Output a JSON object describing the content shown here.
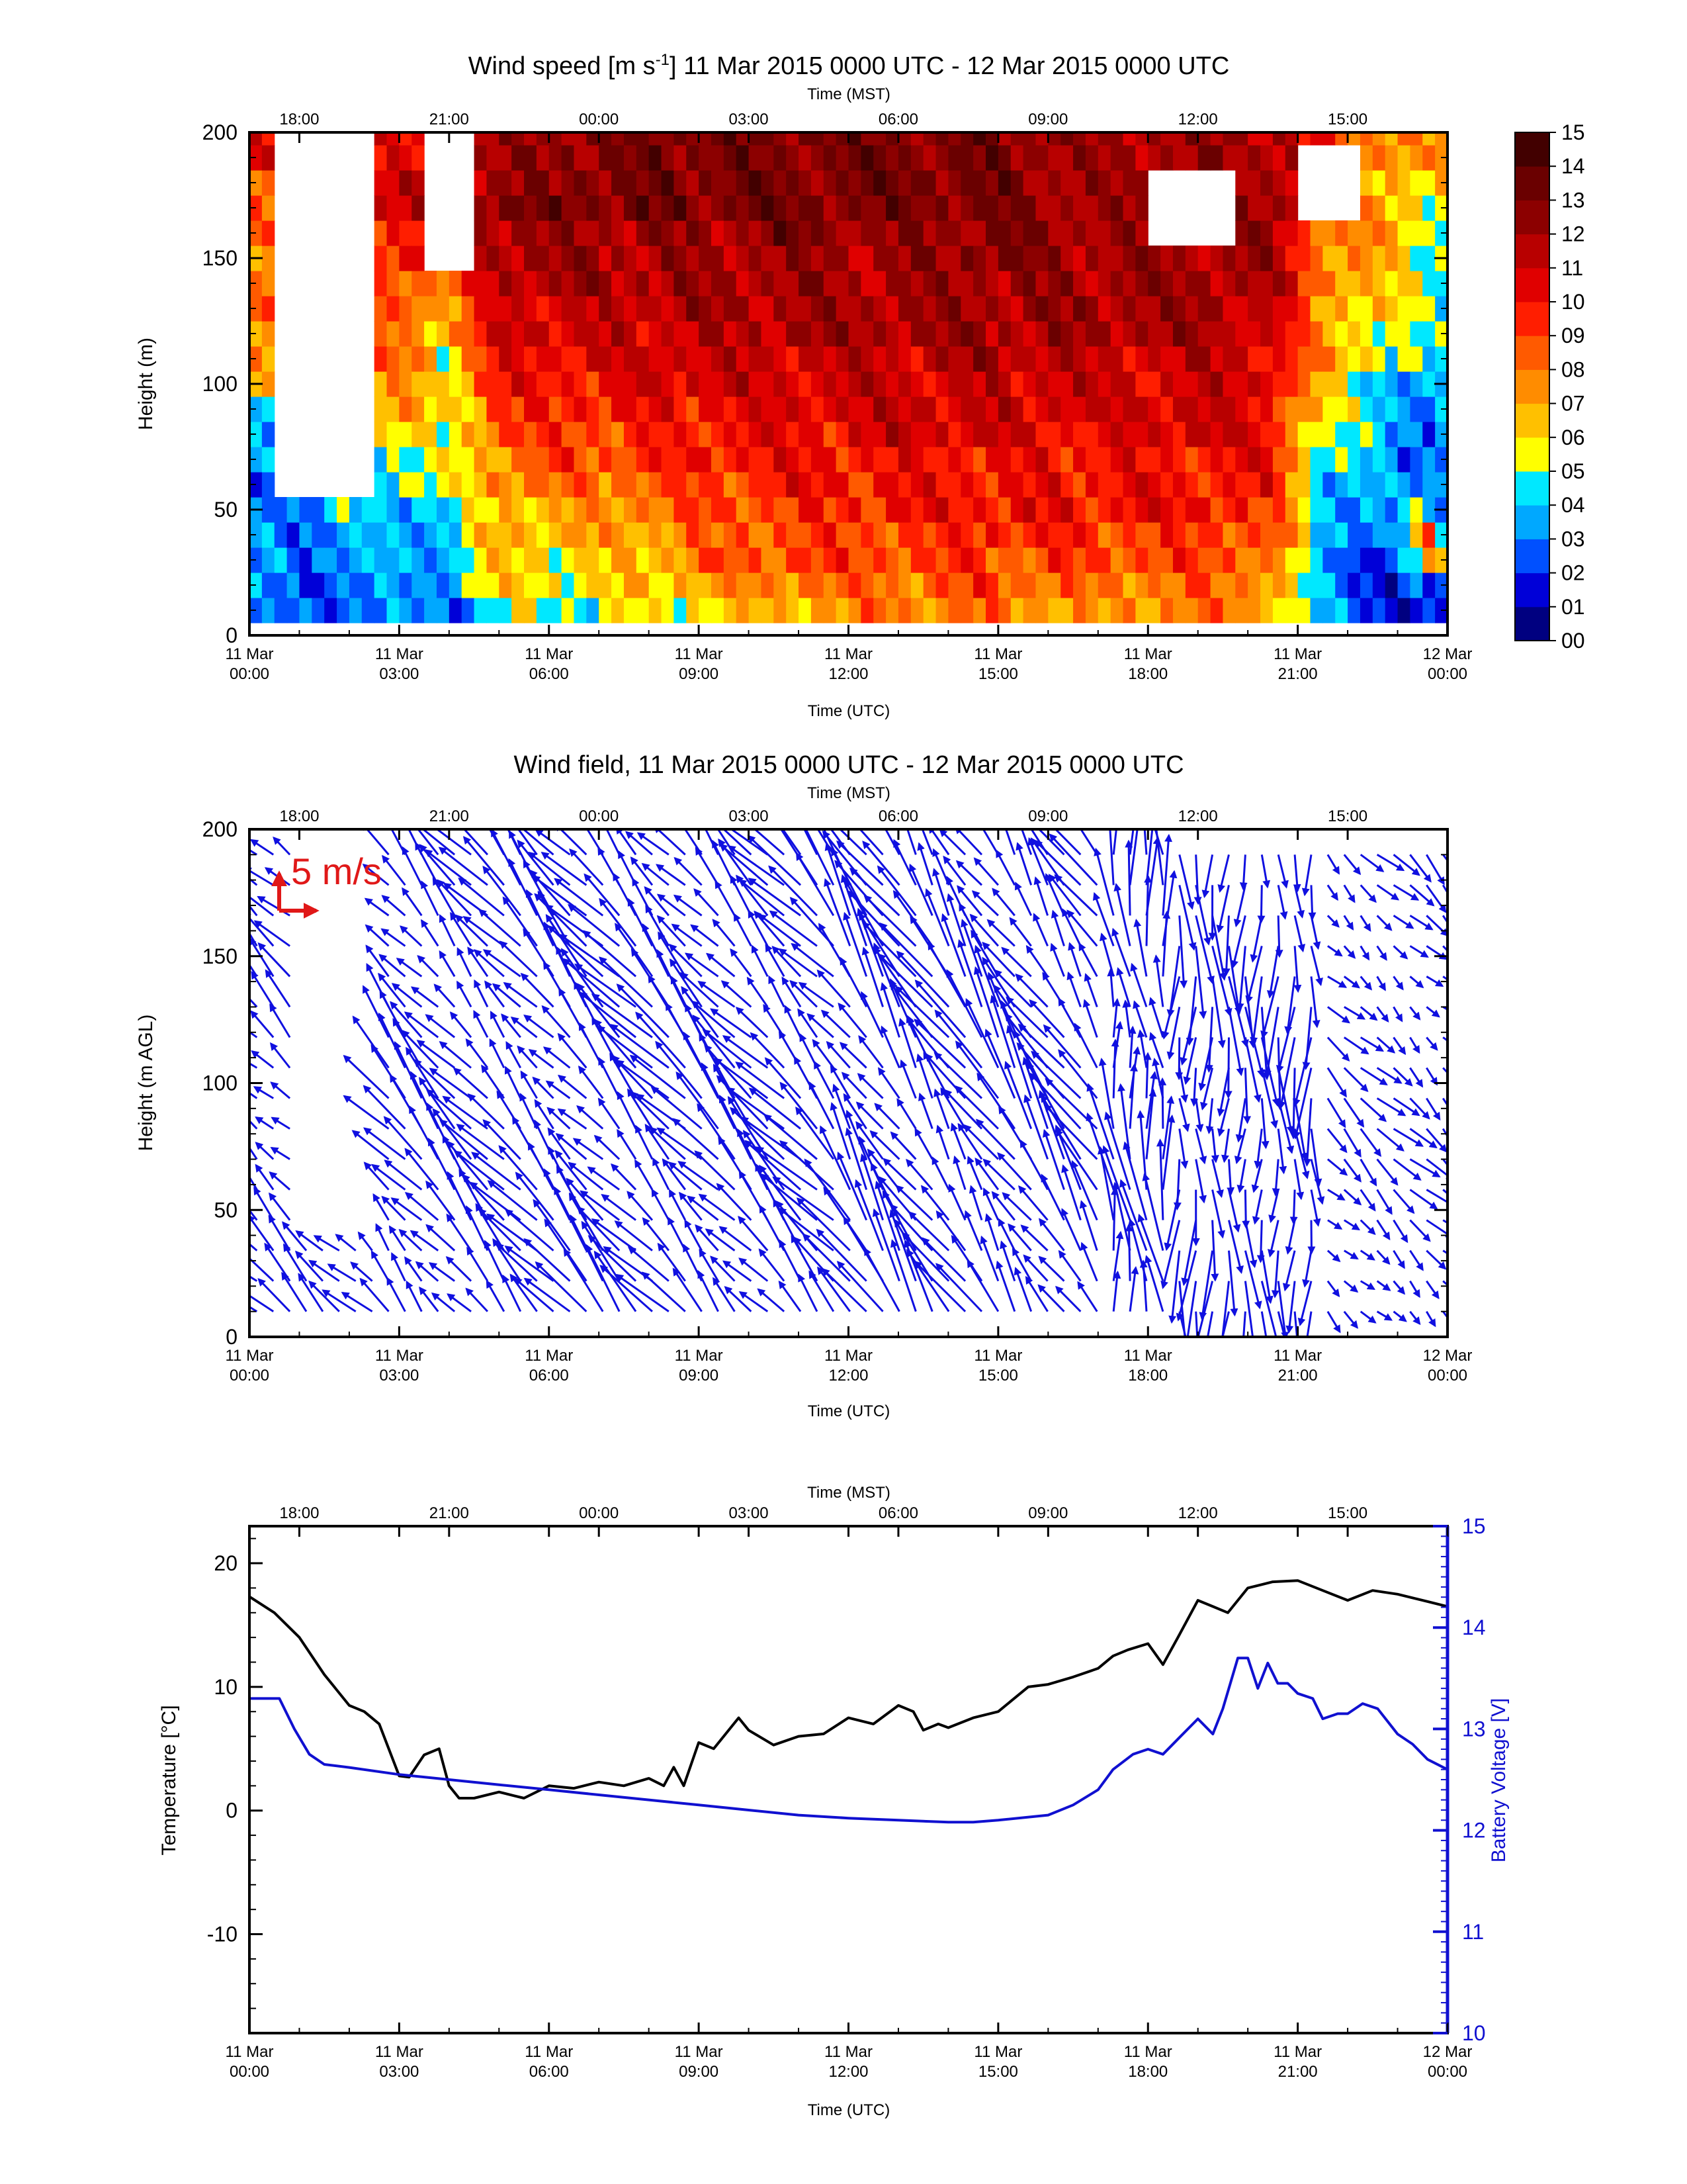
{
  "colors": {
    "wind_arrow": "#1010e0",
    "legend_arrow": "#e01818",
    "battery": "#1010d0",
    "temperature": "#000000"
  },
  "utc_ticks": [
    {
      "d": "11 Mar",
      "t": "00:00"
    },
    {
      "d": "11 Mar",
      "t": "03:00"
    },
    {
      "d": "11 Mar",
      "t": "06:00"
    },
    {
      "d": "11 Mar",
      "t": "09:00"
    },
    {
      "d": "11 Mar",
      "t": "12:00"
    },
    {
      "d": "11 Mar",
      "t": "15:00"
    },
    {
      "d": "11 Mar",
      "t": "18:00"
    },
    {
      "d": "11 Mar",
      "t": "21:00"
    },
    {
      "d": "12 Mar",
      "t": "00:00"
    }
  ],
  "mst_ticks": [
    "18:00",
    "21:00",
    "00:00",
    "03:00",
    "06:00",
    "09:00",
    "12:00",
    "15:00"
  ],
  "common": {
    "xlabel_bottom": "Time (UTC)",
    "xlabel_top": "Time (MST)"
  },
  "chart_data": [
    {
      "type": "heatmap",
      "title_pre": "Wind speed [m s",
      "title_sup": "-1",
      "title_post": "] 11 Mar 2015 0000 UTC - 12 Mar 2015 0000 UTC",
      "ylabel": "Height (m)",
      "xlim_hours_utc": [
        0,
        24
      ],
      "ylim": [
        0,
        200
      ],
      "yticks": [
        0,
        50,
        100,
        150,
        200
      ],
      "colorbar": {
        "labels": [
          "00",
          "01",
          "02",
          "03",
          "04",
          "05",
          "06",
          "07",
          "08",
          "09",
          "10",
          "11",
          "12",
          "13",
          "14",
          "15"
        ],
        "colors": [
          "#000080",
          "#0000d8",
          "#0050ff",
          "#00a8ff",
          "#00e8ff",
          "#ffff00",
          "#ffc000",
          "#ff8c00",
          "#ff5a00",
          "#ff1e00",
          "#e00000",
          "#b80000",
          "#8c0000",
          "#6a0000",
          "#420000"
        ]
      },
      "heights": [
        10,
        20,
        30,
        40,
        50,
        60,
        70,
        80,
        90,
        100,
        110,
        120,
        130,
        140,
        150,
        160,
        170,
        180,
        190,
        200
      ],
      "timeline": [
        {
          "t": 0,
          "s": [
            3,
            3,
            3,
            3,
            3,
            3,
            4,
            4,
            5,
            6,
            7,
            7,
            8,
            8,
            8,
            9,
            9,
            9,
            10,
            10
          ]
        },
        {
          "t": 1,
          "s": [
            2,
            2,
            3,
            3,
            3,
            null,
            null,
            null,
            null,
            null,
            null,
            null,
            null,
            null,
            null,
            null,
            null,
            null,
            null,
            null
          ]
        },
        {
          "t": 2,
          "s": [
            3,
            3,
            3,
            3,
            4,
            null,
            null,
            null,
            null,
            null,
            null,
            null,
            null,
            null,
            null,
            null,
            null,
            null,
            null,
            null
          ]
        },
        {
          "t": 3.2,
          "s": [
            3,
            3,
            4,
            4,
            4,
            5,
            5,
            6,
            7,
            7,
            8,
            8,
            9,
            9,
            10,
            10,
            11,
            11,
            10,
            10
          ]
        },
        {
          "t": 4,
          "s": [
            3,
            4,
            4,
            4,
            4,
            5,
            5,
            5,
            6,
            6,
            6,
            7,
            7,
            8,
            null,
            null,
            null,
            null,
            null,
            null
          ]
        },
        {
          "t": 5,
          "s": [
            5,
            6,
            6,
            7,
            7,
            8,
            8,
            9,
            9,
            10,
            10,
            11,
            11,
            12,
            12,
            12,
            13,
            12,
            12,
            12
          ]
        },
        {
          "t": 7,
          "s": [
            5,
            6,
            6,
            7,
            7,
            8,
            9,
            9,
            10,
            10,
            11,
            11,
            11,
            12,
            12,
            12,
            13,
            13,
            13,
            13
          ]
        },
        {
          "t": 9,
          "s": [
            6,
            7,
            8,
            8,
            9,
            9,
            10,
            10,
            10,
            11,
            11,
            11,
            12,
            12,
            12,
            12,
            13,
            13,
            13,
            13
          ]
        },
        {
          "t": 11,
          "s": [
            7,
            8,
            9,
            9,
            9,
            10,
            10,
            10,
            11,
            11,
            11,
            12,
            12,
            12,
            12,
            13,
            13,
            13,
            13,
            13
          ]
        },
        {
          "t": 13,
          "s": [
            8,
            8,
            9,
            9,
            10,
            10,
            10,
            11,
            11,
            11,
            11,
            12,
            12,
            12,
            12,
            12,
            13,
            13,
            13,
            13
          ]
        },
        {
          "t": 15,
          "s": [
            8,
            9,
            9,
            10,
            10,
            10,
            10,
            11,
            11,
            11,
            12,
            12,
            12,
            12,
            13,
            13,
            13,
            13,
            13,
            13
          ]
        },
        {
          "t": 17,
          "s": [
            7,
            8,
            9,
            9,
            10,
            10,
            10,
            10,
            11,
            11,
            11,
            12,
            12,
            12,
            12,
            12,
            12,
            12,
            12,
            12
          ]
        },
        {
          "t": 19,
          "s": [
            8,
            8,
            9,
            9,
            10,
            10,
            10,
            11,
            11,
            11,
            11,
            12,
            12,
            12,
            12,
            null,
            null,
            null,
            12,
            12
          ]
        },
        {
          "t": 20.5,
          "s": [
            7,
            8,
            8,
            9,
            9,
            10,
            10,
            10,
            10,
            11,
            11,
            11,
            11,
            12,
            12,
            12,
            12,
            12,
            12,
            12
          ]
        },
        {
          "t": 21.5,
          "s": [
            3,
            3,
            3,
            4,
            4,
            4,
            5,
            5,
            6,
            6,
            7,
            7,
            7,
            8,
            8,
            8,
            null,
            null,
            null,
            9
          ]
        },
        {
          "t": 23,
          "s": [
            2,
            2,
            2,
            3,
            3,
            3,
            3,
            4,
            4,
            4,
            5,
            5,
            6,
            6,
            6,
            7,
            7,
            7,
            8,
            8
          ]
        },
        {
          "t": 23.7,
          "s": [
            1,
            2,
            8,
            9,
            5,
            4,
            3,
            3,
            3,
            3,
            4,
            4,
            4,
            5,
            5,
            5,
            6,
            6,
            7,
            7
          ]
        },
        {
          "t": 24,
          "s": [
            2,
            2,
            3,
            3,
            3,
            3,
            4,
            4,
            4,
            4,
            4,
            5,
            5,
            5,
            5,
            6,
            6,
            6,
            7,
            7
          ]
        }
      ]
    },
    {
      "type": "vector",
      "title": "Wind field, 11 Mar 2015 0000 UTC - 12 Mar 2015 0000 UTC",
      "ylabel": "Height (m AGL)",
      "xlim_hours_utc": [
        0,
        24
      ],
      "ylim": [
        0,
        200
      ],
      "yticks": [
        0,
        50,
        100,
        150,
        200
      ],
      "legend_label": "5 m/s",
      "legend_speed_ms": 5,
      "direction_blocks": [
        {
          "t0": 0,
          "t1": 2.7,
          "u": -4,
          "v": 4
        },
        {
          "t0": 2.7,
          "t1": 6.5,
          "u": -5,
          "v": 6
        },
        {
          "t0": 6.5,
          "t1": 12,
          "u": -6,
          "v": 7
        },
        {
          "t0": 12,
          "t1": 17,
          "u": -5,
          "v": 8
        },
        {
          "t0": 17,
          "t1": 18.5,
          "u": -1,
          "v": 10
        },
        {
          "t0": 18.5,
          "t1": 21.5,
          "u": 0,
          "v": -9
        },
        {
          "t0": 21.5,
          "t1": 24,
          "u": 3,
          "v": -3
        }
      ]
    },
    {
      "type": "line",
      "ylabel": "Temperature [°C]",
      "y2label": "Battery Voltage [V]",
      "xlim_hours_utc": [
        0,
        24
      ],
      "ylim": [
        -18,
        23
      ],
      "yticks": [
        -10,
        0,
        10,
        20
      ],
      "y2lim": [
        10,
        15
      ],
      "y2ticks": [
        10,
        11,
        12,
        13,
        14,
        15
      ],
      "series": [
        {
          "axis": "left",
          "x": [
            0,
            0.5,
            1,
            1.5,
            2,
            2.3,
            2.6,
            3,
            3.2,
            3.5,
            3.8,
            4,
            4.2,
            4.5,
            5,
            5.3,
            5.5,
            6,
            6.5,
            7,
            7.5,
            8,
            8.3,
            8.5,
            8.7,
            9,
            9.3,
            9.5,
            9.8,
            10,
            10.5,
            11,
            11.5,
            12,
            12.5,
            13,
            13.3,
            13.5,
            13.8,
            14,
            14.5,
            15,
            15.3,
            15.6,
            16,
            16.5,
            17,
            17.3,
            17.6,
            18,
            18.3,
            18.6,
            19,
            19.3,
            19.6,
            20,
            20.5,
            21,
            21.5,
            22,
            22.5,
            23,
            23.5,
            24
          ],
          "y": [
            17.3,
            16,
            14,
            11,
            8.5,
            8,
            7,
            2.8,
            2.7,
            4.5,
            5,
            2,
            1,
            1,
            1.5,
            1.2,
            1,
            2,
            1.8,
            2.3,
            2,
            2.6,
            2,
            3.5,
            2,
            5.5,
            5,
            6,
            7.5,
            6.5,
            5.3,
            6,
            6.2,
            7.5,
            7,
            8.5,
            8,
            6.5,
            7,
            6.7,
            7.5,
            8,
            9,
            10,
            10.2,
            10.8,
            11.5,
            12.5,
            13,
            13.5,
            11.8,
            14,
            17,
            16.5,
            16,
            18,
            18.5,
            18.6,
            17.8,
            17,
            17.8,
            17.5,
            17,
            16.5
          ]
        },
        {
          "axis": "right",
          "x": [
            0,
            0.6,
            0.9,
            1.2,
            1.5,
            2,
            3,
            4,
            5,
            6,
            7,
            8,
            9,
            10,
            11,
            12,
            13,
            14,
            14.5,
            15,
            16,
            16.5,
            17,
            17.3,
            17.7,
            18,
            18.3,
            18.6,
            19,
            19.3,
            19.5,
            19.8,
            20,
            20.2,
            20.4,
            20.6,
            20.8,
            21,
            21.3,
            21.5,
            21.8,
            22,
            22.3,
            22.6,
            23,
            23.3,
            23.6,
            24
          ],
          "y": [
            13.3,
            13.3,
            13,
            12.75,
            12.65,
            12.62,
            12.55,
            12.5,
            12.45,
            12.4,
            12.35,
            12.3,
            12.25,
            12.2,
            12.15,
            12.12,
            12.1,
            12.08,
            12.08,
            12.1,
            12.15,
            12.25,
            12.4,
            12.6,
            12.75,
            12.8,
            12.75,
            12.9,
            13.1,
            12.95,
            13.2,
            13.7,
            13.7,
            13.4,
            13.65,
            13.45,
            13.45,
            13.35,
            13.3,
            13.1,
            13.15,
            13.15,
            13.25,
            13.2,
            12.95,
            12.85,
            12.7,
            12.6
          ]
        }
      ]
    }
  ]
}
